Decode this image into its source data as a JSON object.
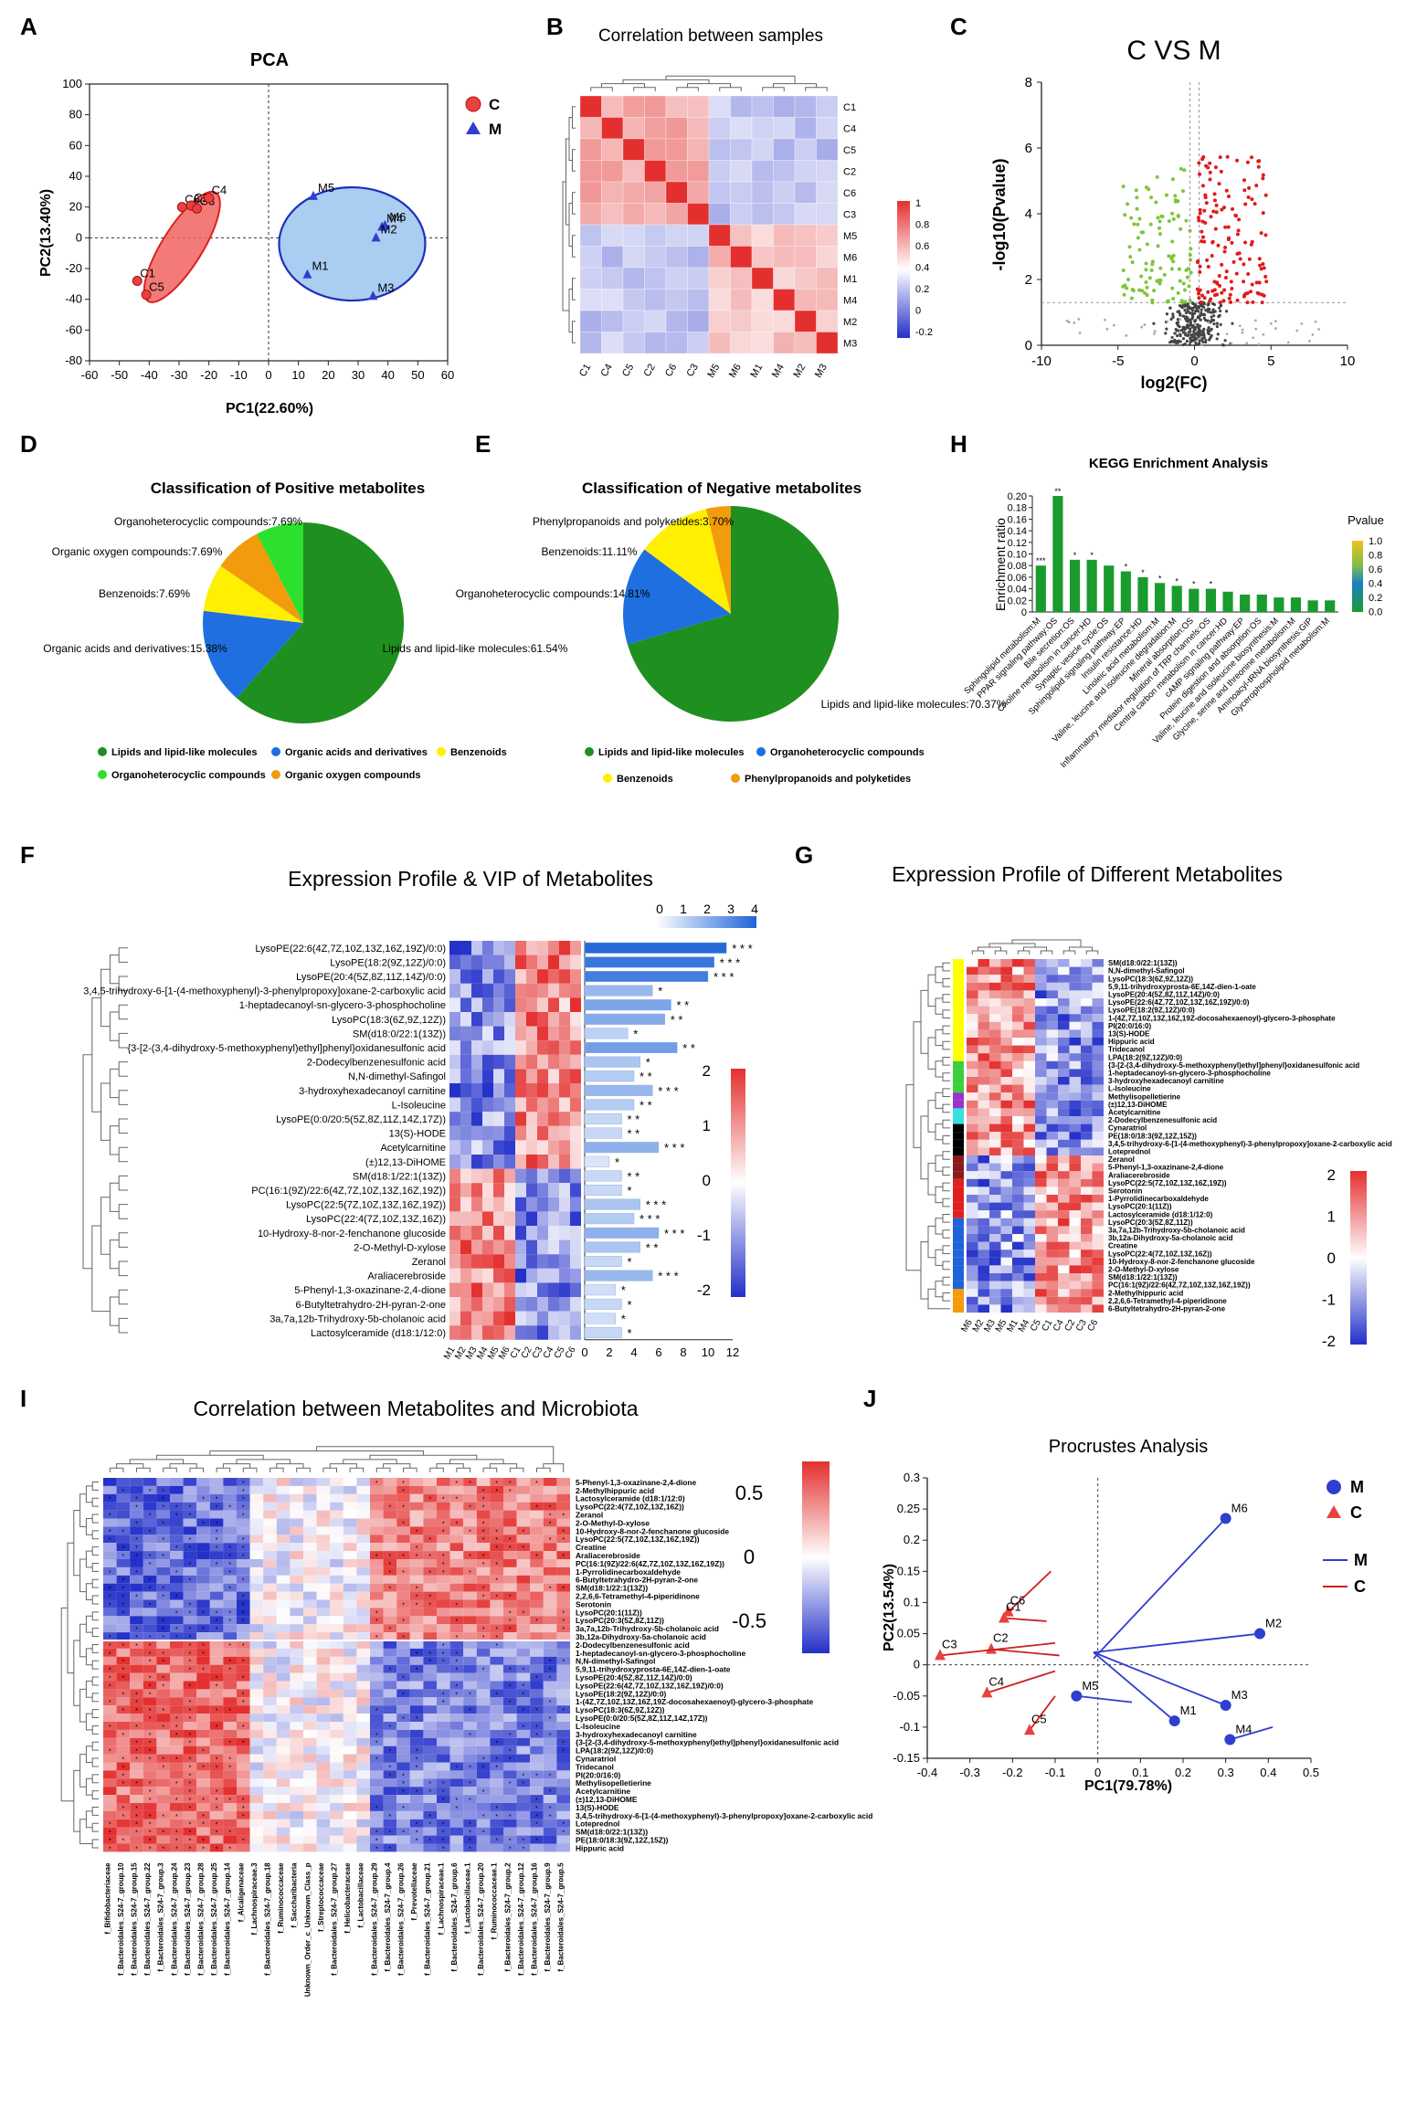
{
  "panel_letters": [
    "A",
    "B",
    "C",
    "D",
    "E",
    "H",
    "F",
    "G",
    "I",
    "J"
  ],
  "colors": {
    "group_c": "#e8413f",
    "group_m": "#2f3ecf",
    "up": "#e11b1b",
    "down": "#7cc63b",
    "ns": "#333333",
    "green": "#1f8f1f",
    "hm_low": "#2330c9",
    "hm_mid": "#ffffff",
    "hm_high": "#e3302f"
  },
  "chart_data": [
    {
      "id": "A",
      "type": "scatter",
      "title": "PCA",
      "xlabel": "PC1(22.60%)",
      "ylabel": "PC2(13.40%)",
      "xlim": [
        -60,
        60
      ],
      "ylim": [
        -80,
        100
      ],
      "xticks": [
        -60,
        -50,
        -40,
        -30,
        -20,
        -10,
        0,
        10,
        20,
        30,
        40,
        50,
        60
      ],
      "yticks": [
        -80,
        -60,
        -40,
        -20,
        0,
        20,
        40,
        60,
        80,
        100
      ],
      "legend": [
        "C",
        "M"
      ],
      "series": [
        {
          "name": "C",
          "points": [
            {
              "label": "C1",
              "x": -44,
              "y": -28
            },
            {
              "label": "C5",
              "x": -41,
              "y": -37
            },
            {
              "label": "C6",
              "x": -29,
              "y": 20
            },
            {
              "label": "C2",
              "x": -26,
              "y": 21
            },
            {
              "label": "C3",
              "x": -24,
              "y": 19
            },
            {
              "label": "C4",
              "x": -20,
              "y": 26
            }
          ]
        },
        {
          "name": "M",
          "points": [
            {
              "label": "M5",
              "x": 15,
              "y": 27
            },
            {
              "label": "M1",
              "x": 13,
              "y": -24
            },
            {
              "label": "M3",
              "x": 35,
              "y": -38
            },
            {
              "label": "M6",
              "x": 39,
              "y": 8
            },
            {
              "label": "M4",
              "x": 38,
              "y": 7
            },
            {
              "label": "M2",
              "x": 36,
              "y": 0
            }
          ]
        }
      ]
    },
    {
      "id": "B",
      "type": "heatmap",
      "title": "Correlation between samples",
      "rows": [
        "C1",
        "C4",
        "C5",
        "C2",
        "C6",
        "C3",
        "M5",
        "M6",
        "M1",
        "M4",
        "M2",
        "M3"
      ],
      "cols": [
        "C1",
        "C4",
        "C5",
        "C2",
        "C6",
        "C3",
        "M5",
        "M6",
        "M1",
        "M4",
        "M2",
        "M3"
      ],
      "colorbar_ticks": [
        "1",
        "0.8",
        "0.6",
        "0.4",
        "0.2",
        "0",
        "-0.2"
      ]
    },
    {
      "id": "C",
      "type": "scatter",
      "title": "C VS M",
      "xlabel": "log2(FC)",
      "ylabel": "-log10(Pvalue)",
      "xlim": [
        -10,
        10
      ],
      "ylim": [
        0,
        8
      ],
      "xticks": [
        -10,
        -5,
        0,
        5,
        10
      ],
      "yticks": [
        0,
        2,
        4,
        6,
        8
      ]
    },
    {
      "id": "D",
      "type": "pie",
      "title": "Classification of Positive metabolites",
      "slices": [
        {
          "label": "Lipids and lipid-like molecules",
          "value": 61.54,
          "color": "#1f8f1f",
          "text": "Lipids and lipid-like molecules:61.54%"
        },
        {
          "label": "Organic acids and derivatives",
          "value": 15.38,
          "color": "#1f6fe0",
          "text": "Organic acids and derivatives:15.38%"
        },
        {
          "label": "Benzenoids",
          "value": 7.69,
          "color": "#ffef00",
          "text": "Benzenoids:7.69%"
        },
        {
          "label": "Organic oxygen compounds",
          "value": 7.69,
          "color": "#f29b0c",
          "text": "Organic oxygen compounds:7.69%"
        },
        {
          "label": "Organoheterocyclic compounds",
          "value": 7.69,
          "color": "#2de02d",
          "text": "Organoheterocyclic compounds:7.69%"
        }
      ],
      "legend": [
        "Lipids and lipid-like molecules",
        "Organic acids and derivatives",
        "Benzenoids",
        "Organoheterocyclic compounds",
        "Organic oxygen compounds"
      ]
    },
    {
      "id": "E",
      "type": "pie",
      "title": "Classification of Negative metabolites",
      "slices": [
        {
          "label": "Lipids and lipid-like molecules",
          "value": 70.37,
          "color": "#1f8f1f",
          "text": "Lipids and lipid-like molecules:70.37%"
        },
        {
          "label": "Organoheterocyclic compounds",
          "value": 14.81,
          "color": "#1f6fe0",
          "text": "Organoheterocyclic compounds:14.81%"
        },
        {
          "label": "Benzenoids",
          "value": 11.11,
          "color": "#ffef00",
          "text": "Benzenoids:11.11%"
        },
        {
          "label": "Phenylpropanoids and polyketides",
          "value": 3.7,
          "color": "#f29b0c",
          "text": "Phenylpropanoids and polyketides:3.70%"
        }
      ],
      "legend": [
        "Lipids and lipid-like molecules",
        "Organoheterocyclic compounds",
        "Benzenoids",
        "Phenylpropanoids and polyketides"
      ]
    },
    {
      "id": "H",
      "type": "bar",
      "title": "KEGG Enrichment Analysis",
      "ylabel": "Enrichment ratio",
      "ylim": [
        0,
        0.2
      ],
      "yticks": [
        "0",
        "0.02",
        "0.04",
        "0.06",
        "0.08",
        "0.10",
        "0.12",
        "0.14",
        "0.16",
        "0.18",
        "0.20"
      ],
      "colorbar_title": "Pvalue",
      "colorbar_ticks": [
        "1.0",
        "0.8",
        "0.6",
        "0.4",
        "0.2",
        "0.0"
      ],
      "categories": [
        "Sphingolipid metabolism:M",
        "PPAR signaling pathway:OS",
        "Bile secretion:OS",
        "Choline metabolism in cancer:HD",
        "Synaptic vesicle cycle:OS",
        "Sphingolipid signaling pathway:EP",
        "Insulin resistance:HD",
        "Linoleic acid metabolism:M",
        "Valine, leucine and isoleucine degradation:M",
        "Mineral absorption:OS",
        "Inflammatory mediator regulation of TRP channels:OS",
        "Central carbon metabolism in cancer:HD",
        "cAMP signaling pathway:EP",
        "Protein digestion and absorption:OS",
        "Valine, leucine and isoleucine biosynthesis:M",
        "Glycine, serine and threonine metabolism:M",
        "Aminoacyl-tRNA biosynthesis:GIP",
        "Glycerophospholipid metabolism:M"
      ],
      "values": [
        0.08,
        0.2,
        0.09,
        0.09,
        0.08,
        0.07,
        0.06,
        0.05,
        0.045,
        0.04,
        0.04,
        0.035,
        0.03,
        0.03,
        0.025,
        0.025,
        0.02,
        0.02
      ],
      "stars": [
        "***",
        "**",
        "*",
        "*",
        "",
        "*",
        "*",
        "*",
        "*",
        "*",
        "*",
        "",
        "",
        "",
        "",
        "",
        "",
        ""
      ]
    },
    {
      "id": "F",
      "type": "heatmap",
      "title": "Expression Profile & VIP of  Metabolites",
      "rows": [
        "LysoPE(22:6(4Z,7Z,10Z,13Z,16Z,19Z)/0:0)",
        "LysoPE(18:2(9Z,12Z)/0:0)",
        "LysoPE(20:4(5Z,8Z,11Z,14Z)/0:0)",
        "3,4,5-trihydroxy-6-[1-(4-methoxyphenyl)-3-phenylpropoxy]oxane-2-carboxylic acid",
        "1-heptadecanoyl-sn-glycero-3-phosphocholine",
        "LysoPC(18:3(6Z,9Z,12Z))",
        "SM(d18:0/22:1(13Z))",
        "{3-[2-(3,4-dihydroxy-5-methoxyphenyl)ethyl]phenyl}oxidanesulfonic acid",
        "2-Dodecylbenzenesulfonic acid",
        "N,N-dimethyl-Safingol",
        "3-hydroxyhexadecanoyl carnitine",
        "L-Isoleucine",
        "LysoPE(0:0/20:5(5Z,8Z,11Z,14Z,17Z))",
        "13(S)-HODE",
        "Acetylcarnitine",
        "(±)12,13-DiHOME",
        "SM(d18:1/22:1(13Z))",
        "PC(16:1(9Z)/22:6(4Z,7Z,10Z,13Z,16Z,19Z))",
        "LysoPC(22:5(7Z,10Z,13Z,16Z,19Z))",
        "LysoPC(22:4(7Z,10Z,13Z,16Z))",
        "10-Hydroxy-8-nor-2-fenchanone glucoside",
        "2-O-Methyl-D-xylose",
        "Zeranol",
        "Araliacerebroside",
        "5-Phenyl-1,3-oxazinane-2,4-dione",
        "6-Butyltetrahydro-2H-pyran-2-one",
        "3a,7a,12b-Trihydroxy-5b-cholanoic acid",
        "Lactosylceramide (d18:1/12:0)"
      ],
      "cols": [
        "M1",
        "M2",
        "M3",
        "M4",
        "M5",
        "M6",
        "C1",
        "C2",
        "C3",
        "C4",
        "C5",
        "C6"
      ],
      "vip": [
        11.5,
        10.5,
        10.0,
        5.5,
        7.0,
        6.5,
        3.5,
        7.5,
        4.5,
        4.0,
        5.5,
        4.0,
        3.0,
        3.0,
        6.0,
        2.0,
        3.0,
        3.0,
        4.5,
        4.0,
        6.0,
        4.5,
        3.0,
        5.5,
        2.5,
        3.0,
        2.5,
        3.0
      ],
      "stars": [
        "* * *",
        "* * *",
        "* * *",
        "*",
        "* *",
        "* *",
        "*",
        "* *",
        "*",
        "* *",
        "* * *",
        "* *",
        "* *",
        "* *",
        "* * *",
        "*",
        "* *",
        "*",
        "* * *",
        "* * *",
        "* * *",
        "* *",
        "*",
        "* * *",
        "*",
        "*",
        "*",
        "*"
      ],
      "vip_ticks": [
        "0",
        "2",
        "4",
        "6",
        "8",
        "10",
        "12"
      ],
      "vip_colorbar_ticks": [
        "0",
        "1",
        "2",
        "3",
        "4"
      ],
      "colorbar_ticks": [
        "2",
        "1",
        "0",
        "-1",
        "-2"
      ]
    },
    {
      "id": "G",
      "type": "heatmap",
      "title": "Expression Profile of Different Metabolites",
      "rows": [
        "SM(d18:0/22:1(13Z))",
        "N,N-dimethyl-Safingol",
        "LysoPC(18:3(6Z,9Z,12Z))",
        "5,9,11-trihydroxyprosta-6E,14Z-dien-1-oate",
        "LysoPE(20:4(5Z,8Z,11Z,14Z)/0:0)",
        "LysoPE(22:6(4Z,7Z,10Z,13Z,16Z,19Z)/0:0)",
        "LysoPE(18:2(9Z,12Z)/0:0)",
        "1-(4Z,7Z,10Z,13Z,16Z,19Z-docosahexaenoyl)-glycero-3-phosphate",
        "PI(20:0/16:0)",
        "13(S)-HODE",
        "Hippuric acid",
        "Tridecanol",
        "LPA(18:2(9Z,12Z)/0:0)",
        "{3-[2-(3,4-dihydroxy-5-methoxyphenyl)ethyl]phenyl}oxidanesulfonic acid",
        "1-heptadecanoyl-sn-glycero-3-phosphocholine",
        "3-hydroxyhexadecanoyl carnitine",
        "L-Isoleucine",
        "Methylisopelletierine",
        "(±)12,13-DiHOME",
        "Acetylcarnitine",
        "2-Dodecylbenzenesulfonic acid",
        "Cynaratriol",
        "PE(18:0/18:3(9Z,12Z,15Z))",
        "3,4,5-trihydroxy-6-[1-(4-methoxyphenyl)-3-phenylpropoxy]oxane-2-carboxylic acid",
        "Loteprednol",
        "Zeranol",
        "5-Phenyl-1,3-oxazinane-2,4-dione",
        "Araliacerebroside",
        "LysoPC(22:5(7Z,10Z,13Z,16Z,19Z))",
        "Serotonin",
        "1-Pyrrolidinecarboxaldehyde",
        "LysoPC(20:1(11Z))",
        "Lactosylceramide (d18:1/12:0)",
        "LysoPC(20:3(5Z,8Z,11Z))",
        "3a,7a,12b-Trihydroxy-5b-cholanoic acid",
        "3b,12a-Dihydroxy-5a-cholanoic acid",
        "Creatine",
        "LysoPC(22:4(7Z,10Z,13Z,16Z))",
        "10-Hydroxy-8-nor-2-fenchanone glucoside",
        "2-O-Methyl-D-xylose",
        "SM(d18:1/22:1(13Z))",
        "PC(16:1(9Z)/22:6(4Z,7Z,10Z,13Z,16Z,19Z))",
        "2-Methylhippuric acid",
        "2,2,6,6-Tetramethyl-4-piperidinone",
        "6-Butyltetrahydro-2H-pyran-2-one"
      ],
      "cols": [
        "M6",
        "M2",
        "M3",
        "M5",
        "M1",
        "M4",
        "C5",
        "C1",
        "C4",
        "C2",
        "C3",
        "C6"
      ],
      "colorbar_ticks": [
        "2",
        "1",
        "0",
        "-1",
        "-2"
      ]
    },
    {
      "id": "I",
      "type": "heatmap",
      "title": "Correlation between Metabolites and Microbiota",
      "rows": [
        "5-Phenyl-1,3-oxazinane-2,4-dione",
        "2-Methylhippuric acid",
        "Lactosylceramide (d18:1/12:0)",
        "LysoPC(22:4(7Z,10Z,13Z,16Z))",
        "Zeranol",
        "2-O-Methyl-D-xylose",
        "10-Hydroxy-8-nor-2-fenchanone glucoside",
        "LysoPC(22:5(7Z,10Z,13Z,16Z,19Z))",
        "Creatine",
        "Araliacerebroside",
        "PC(16:1(9Z)/22:6(4Z,7Z,10Z,13Z,16Z,19Z))",
        "1-Pyrrolidinecarboxaldehyde",
        "6-Butyltetrahydro-2H-pyran-2-one",
        "SM(d18:1/22:1(13Z))",
        "2,2,6,6-Tetramethyl-4-piperidinone",
        "Serotonin",
        "LysoPC(20:1(11Z))",
        "LysoPC(20:3(5Z,8Z,11Z))",
        "3a,7a,12b-Trihydroxy-5b-cholanoic acid",
        "3b,12a-Dihydroxy-5a-cholanoic acid",
        "2-Dodecylbenzenesulfonic acid",
        "1-heptadecanoyl-sn-glycero-3-phosphocholine",
        "N,N-dimethyl-Safingol",
        "5,9,11-trihydroxyprosta-6E,14Z-dien-1-oate",
        "LysoPE(20:4(5Z,8Z,11Z,14Z)/0:0)",
        "LysoPE(22:6(4Z,7Z,10Z,13Z,16Z,19Z)/0:0)",
        "LysoPE(18:2(9Z,12Z)/0:0)",
        "1-(4Z,7Z,10Z,13Z,16Z,19Z-docosahexaenoyl)-glycero-3-phosphate",
        "LysoPC(18:3(6Z,9Z,12Z))",
        "LysoPE(0:0/20:5(5Z,8Z,11Z,14Z,17Z))",
        "L-Isoleucine",
        "3-hydroxyhexadecanoyl carnitine",
        "{3-[2-(3,4-dihydroxy-5-methoxyphenyl)ethyl]phenyl}oxidanesulfonic acid",
        "LPA(18:2(9Z,12Z)/0:0)",
        "Cynaratriol",
        "Tridecanol",
        "PI(20:0/16:0)",
        "Methylisopelletierine",
        "Acetylcarnitine",
        "(±)12,13-DiHOME",
        "13(S)-HODE",
        "3,4,5-trihydroxy-6-[1-(4-methoxyphenyl)-3-phenylpropoxy]oxane-2-carboxylic acid",
        "Loteprednol",
        "SM(d18:0/22:1(13Z))",
        "PE(18:0/18:3(9Z,12Z,15Z))",
        "Hippuric acid"
      ],
      "cols": [
        "f_Bifidobacteriaceae",
        "f_Bacteroidales_S24-7_group.10",
        "f_Bacteroidales_S24-7_group.15",
        "f_Bacteroidales_S24-7_group.22",
        "f_Bacteroidales_S24-7_group.3",
        "f_Bacteroidales_S24-7_group.24",
        "f_Bacteroidales_S24-7_group.23",
        "f_Bacteroidales_S24-7_group.28",
        "f_Bacteroidales_S24-7_group.25",
        "f_Bacteroidales_S24-7_group.14",
        "f_Alcaligenaceae",
        "f_Lachnospiraceae.3",
        "f_Bacteroidales_S24-7_group.18",
        "f_Ruminococcaceae",
        "f_Saccharibacteria",
        "Unknown_Order_c_Unknown_Class_p",
        "f_Streptococcaceae",
        "f_Bacteroidales_S24-7_group.27",
        "f_Helicobacteraceae",
        "f_Lactobacillaceae",
        "f_Bacteroidales_S24-7_group.29",
        "f_Bacteroidales_S24-7_group.4",
        "f_Bacteroidales_S24-7_group.26",
        "f_Prevotellaceae",
        "f_Bacteroidales_S24-7_group.21",
        "f_Lachnospiraceae.1",
        "f_Bacteroidales_S24-7_group.6",
        "f_Lactobacillaceae.1",
        "f_Bacteroidales_S24-7_group.20",
        "f_Ruminococcaceae.1",
        "f_Bacteroidales_S24-7_group.2",
        "f_Bacteroidales_S24-7_group.12",
        "f_Bacteroidales_S24-7_group.16",
        "f_Bacteroidales_S24-7_group.9",
        "f_Bacteroidales_S24-7_group.5"
      ],
      "colorbar_ticks": [
        "0.5",
        "0",
        "-0.5"
      ]
    },
    {
      "id": "J",
      "type": "scatter",
      "title": "Procrustes Analysis",
      "xlabel": "PC1(79.78%)",
      "ylabel": "PC2(13.54%)",
      "xlim": [
        -0.4,
        0.5
      ],
      "ylim": [
        -0.15,
        0.3
      ],
      "xticks": [
        "-0.4",
        "-0.3",
        "-0.2",
        "-0.1",
        "0",
        "0.1",
        "0.2",
        "0.3",
        "0.4",
        "0.5"
      ],
      "yticks": [
        "-0.15",
        "-0.1",
        "-0.05",
        "0",
        "0.05",
        "0.1",
        "0.15",
        "0.2",
        "0.25",
        "0.3"
      ],
      "legend": [
        "M",
        "C"
      ],
      "legend_lines": [
        "M",
        "C"
      ],
      "series": [
        {
          "name": "M",
          "points": [
            {
              "label": "M6",
              "x": 0.3,
              "y": 0.235,
              "ex": -0.01,
              "ey": 0.01
            },
            {
              "label": "M2",
              "x": 0.38,
              "y": 0.05,
              "ex": -0.01,
              "ey": 0.02
            },
            {
              "label": "M3",
              "x": 0.3,
              "y": -0.065,
              "ex": -0.01,
              "ey": 0.02
            },
            {
              "label": "M1",
              "x": 0.18,
              "y": -0.09,
              "ex": -0.01,
              "ey": 0.02
            },
            {
              "label": "M4",
              "x": 0.31,
              "y": -0.12,
              "ex": 0.41,
              "ey": -0.1
            },
            {
              "label": "M5",
              "x": -0.05,
              "y": -0.05,
              "ex": 0.08,
              "ey": -0.06
            }
          ]
        },
        {
          "name": "C",
          "points": [
            {
              "label": "C6",
              "x": -0.21,
              "y": 0.085,
              "ex": -0.11,
              "ey": 0.15
            },
            {
              "label": "C1",
              "x": -0.22,
              "y": 0.075,
              "ex": -0.12,
              "ey": 0.07
            },
            {
              "label": "C2",
              "x": -0.25,
              "y": 0.025,
              "ex": -0.09,
              "ey": 0.015
            },
            {
              "label": "C3",
              "x": -0.37,
              "y": 0.015,
              "ex": -0.1,
              "ey": 0.035
            },
            {
              "label": "C4",
              "x": -0.26,
              "y": -0.045,
              "ex": -0.1,
              "ey": -0.01
            },
            {
              "label": "C5",
              "x": -0.16,
              "y": -0.105,
              "ex": -0.1,
              "ey": -0.05
            }
          ]
        }
      ]
    }
  ]
}
